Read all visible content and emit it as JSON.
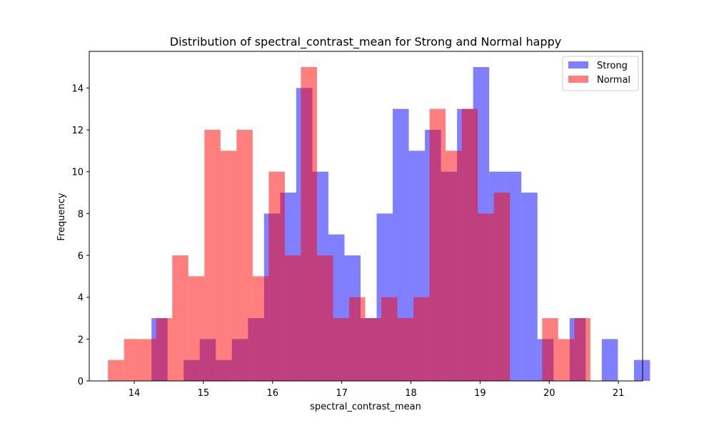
{
  "chart_data": {
    "type": "bar",
    "title": "Distribution of spectral_contrast_mean for Strong and Normal happy",
    "xlabel": "spectral_contrast_mean",
    "ylabel": "Frequency",
    "xlim": [
      13.35,
      21.35
    ],
    "ylim": [
      0,
      15.75
    ],
    "xticks": [
      14,
      15,
      16,
      17,
      18,
      19,
      20,
      21
    ],
    "yticks": [
      0,
      2,
      4,
      6,
      8,
      10,
      12,
      14
    ],
    "grid": false,
    "legend_position": "top-right",
    "series": [
      {
        "name": "Strong",
        "color": "#0000ff",
        "opacity": 0.5,
        "bin_start": 14.25,
        "bin_width": 0.2325,
        "values": [
          3,
          0,
          1,
          2,
          1,
          2,
          3,
          8,
          9,
          14,
          10,
          7,
          6,
          3,
          8,
          13,
          11,
          12,
          10,
          13,
          15,
          10,
          10,
          9,
          2,
          0,
          3,
          0,
          2,
          0,
          1
        ]
      },
      {
        "name": "Normal",
        "color": "#ff0000",
        "opacity": 0.5,
        "bin_start": 13.62,
        "bin_width": 0.2325,
        "values": [
          1,
          2,
          2,
          3,
          6,
          5,
          12,
          11,
          12,
          5,
          10,
          6,
          15,
          6,
          3,
          4,
          3,
          4,
          3,
          4,
          13,
          11,
          13,
          8,
          9,
          0,
          0,
          3,
          2,
          3
        ]
      }
    ]
  }
}
